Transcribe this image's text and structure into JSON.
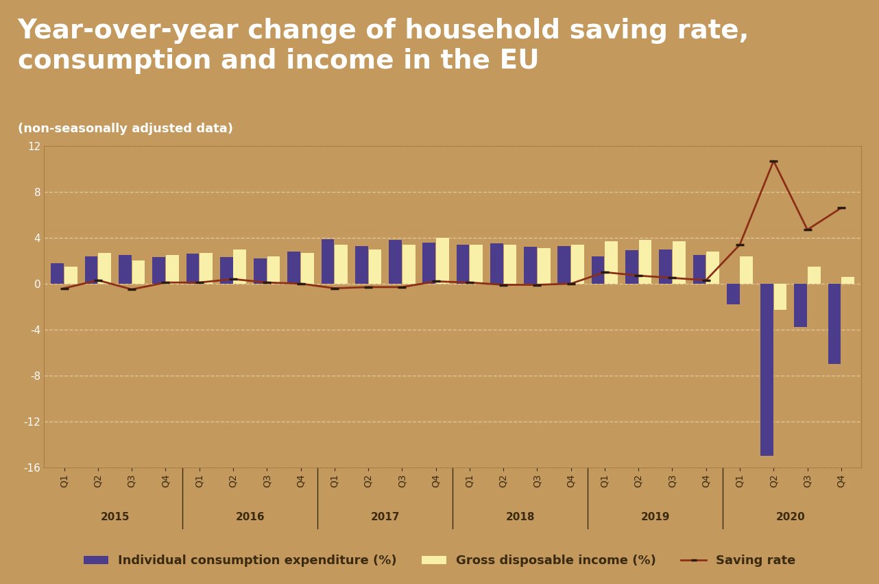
{
  "chart_data": {
    "type": "bar",
    "title": "Year-over-year change of household saving rate, consumption and income in the EU",
    "subtitle": "(non-seasonally adjusted data)",
    "categories": [
      "Q1",
      "Q2",
      "Q3",
      "Q4",
      "Q1",
      "Q2",
      "Q3",
      "Q4",
      "Q1",
      "Q2",
      "Q3",
      "Q4",
      "Q1",
      "Q2",
      "Q3",
      "Q4",
      "Q1",
      "Q2",
      "Q3",
      "Q4",
      "Q1",
      "Q2",
      "Q3",
      "Q4"
    ],
    "years": [
      "2015",
      "2016",
      "2017",
      "2018",
      "2019",
      "2020"
    ],
    "series": [
      {
        "name": "Individual consumption expenditure (%)",
        "type": "bar",
        "color": "#4b3d8c",
        "values": [
          1.8,
          2.4,
          2.5,
          2.3,
          2.6,
          2.3,
          2.2,
          2.8,
          3.9,
          3.3,
          3.8,
          3.6,
          3.4,
          3.5,
          3.2,
          3.3,
          2.4,
          2.9,
          3.0,
          2.5,
          -1.8,
          -15.0,
          -3.8,
          -7.0
        ]
      },
      {
        "name": "Gross disposable income (%)",
        "type": "bar",
        "color": "#f8f0a8",
        "values": [
          1.5,
          2.7,
          2.0,
          2.5,
          2.7,
          3.0,
          2.4,
          2.7,
          3.4,
          3.0,
          3.4,
          4.0,
          3.4,
          3.4,
          3.1,
          3.4,
          3.7,
          3.8,
          3.7,
          2.8,
          2.4,
          -2.3,
          1.5,
          0.6
        ]
      },
      {
        "name": "Saving rate",
        "type": "line",
        "color": "#8b2e16",
        "marker": "dash",
        "line_style": "solid",
        "values": [
          -0.4,
          0.3,
          -0.5,
          0.1,
          0.1,
          0.4,
          0.1,
          0.0,
          -0.4,
          -0.3,
          -0.3,
          0.2,
          0.1,
          -0.1,
          -0.1,
          0.0,
          1.0,
          0.7,
          0.5,
          0.3,
          3.4,
          10.7,
          4.7,
          6.6
        ]
      }
    ],
    "ylim": [
      -16,
      12
    ],
    "yticks": [
      -16,
      -12,
      -8,
      -4,
      0,
      4,
      8,
      12
    ],
    "grid": true,
    "legend": "lower center"
  }
}
